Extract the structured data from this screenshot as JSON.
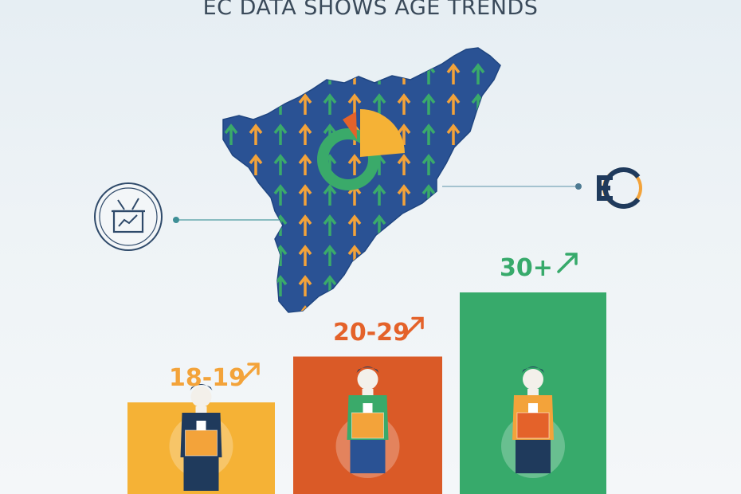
{
  "title": "EC DATA SHOWS AGE TRENDS",
  "colors": {
    "map_fill": "#2a5294",
    "arrow_green": "#3aaa6a",
    "arrow_orange": "#f3a33a",
    "accent_orange": "#e4622a",
    "bar_yellow": "#f5b236",
    "bar_orange": "#da5a27",
    "bar_green": "#37aa6b"
  },
  "icons": {
    "left": "ballot-box-chart-icon",
    "right": "ec-logo-icon",
    "trend": "trend-up-arrow-icon",
    "people": "voter-figure-icon"
  },
  "chart_data": {
    "type": "bar",
    "categories": [
      "18-19",
      "20-29",
      "30+"
    ],
    "values": [
      1,
      1.5,
      2.2
    ],
    "colors": [
      "#f5b236",
      "#da5a27",
      "#37aa6b"
    ],
    "label_colors": [
      "#f3a33a",
      "#e4622a",
      "#37aa6b"
    ],
    "title": "EC DATA SHOWS AGE TRENDS",
    "xlabel": "",
    "ylabel": "",
    "grid": false,
    "trend": "increasing"
  }
}
